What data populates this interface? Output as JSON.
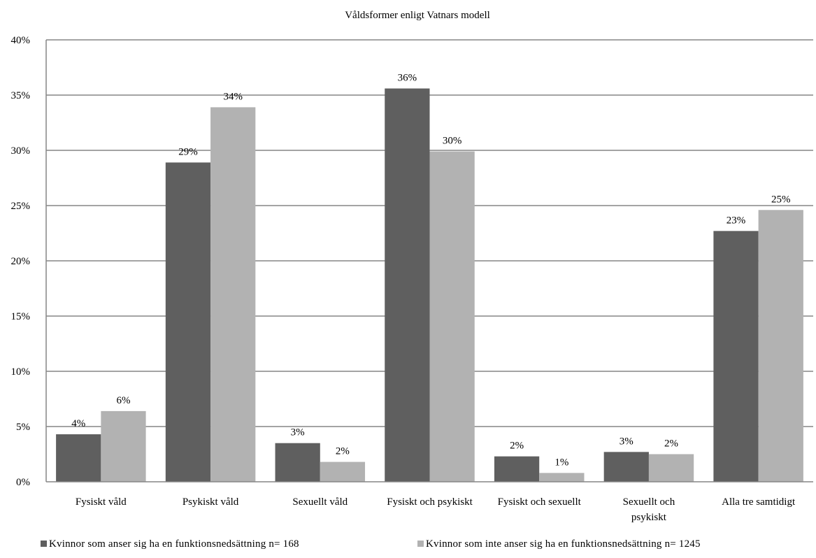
{
  "chart_data": {
    "type": "bar",
    "title": "Våldsformer enligt Vatnars modell",
    "xlabel": "",
    "ylabel": "",
    "ylim": [
      0,
      40
    ],
    "yticks": [
      "0%",
      "5%",
      "10%",
      "15%",
      "20%",
      "25%",
      "30%",
      "35%",
      "40%"
    ],
    "grid": true,
    "legend_position": "bottom",
    "categories": [
      [
        "Fysiskt våld"
      ],
      [
        "Psykiskt våld"
      ],
      [
        "Sexuellt våld"
      ],
      [
        "Fysiskt och psykiskt"
      ],
      [
        "Fysiskt och sexuellt"
      ],
      [
        "Sexuellt och",
        "psykiskt"
      ],
      [
        "Alla tre samtidigt"
      ]
    ],
    "series": [
      {
        "name": "Kvinnor som anser sig ha en funktionsnedsättning n= 168",
        "color": "#5f5f5f",
        "values": [
          4.3,
          28.9,
          3.5,
          35.6,
          2.3,
          2.7,
          22.7
        ],
        "labels": [
          "4%",
          "29%",
          "3%",
          "36%",
          "2%",
          "3%",
          "23%"
        ]
      },
      {
        "name": "Kvinnor som inte anser sig ha en funktionsnedsättning n= 1245",
        "color": "#b2b2b2",
        "values": [
          6.4,
          33.9,
          1.8,
          29.9,
          0.8,
          2.5,
          24.6
        ],
        "labels": [
          "6%",
          "34%",
          "2%",
          "30%",
          "1%",
          "2%",
          "25%"
        ]
      }
    ]
  }
}
